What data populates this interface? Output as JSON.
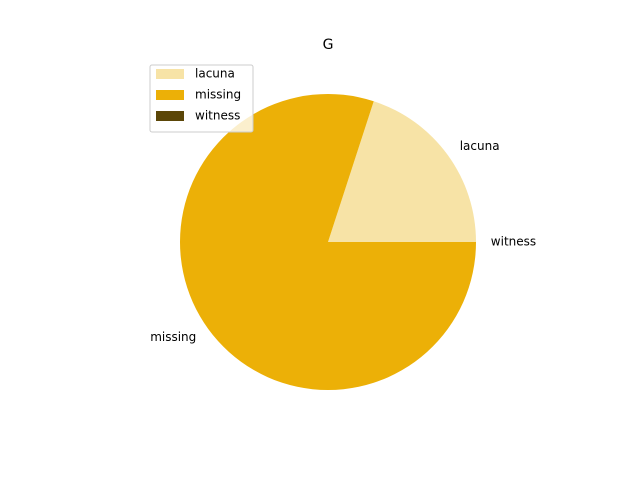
{
  "chart_data": {
    "type": "pie",
    "title": "G",
    "labels": [
      "lacuna",
      "missing",
      "witness"
    ],
    "values": [
      20,
      80,
      0
    ],
    "colors": [
      "#f7e3a6",
      "#ecb007",
      "#5b4608"
    ],
    "start_angle_deg": 0,
    "direction": "counterclockwise",
    "legend": {
      "position": "upper-left",
      "entries": [
        "lacuna",
        "missing",
        "witness"
      ]
    }
  }
}
